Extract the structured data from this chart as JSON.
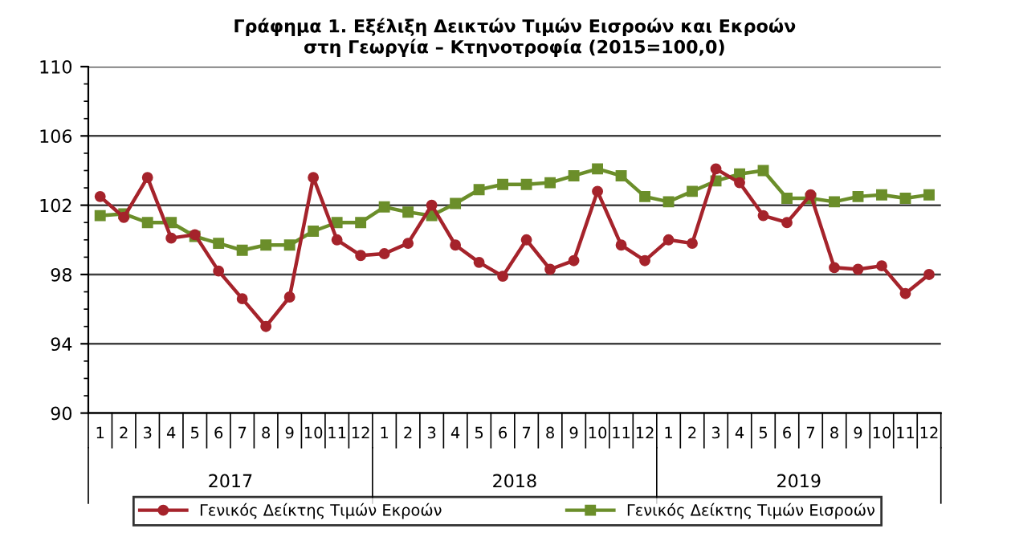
{
  "chart_data": {
    "type": "line",
    "title": "Γράφημα 1. Εξέλιξη Δεικτών Τιμών Εισροών και Εκροών\nστη Γεωργία – Κτηνοτροφία (2015=100,0)",
    "categories": [
      "1",
      "2",
      "3",
      "4",
      "5",
      "6",
      "7",
      "8",
      "9",
      "10",
      "11",
      "12",
      "1",
      "2",
      "3",
      "4",
      "5",
      "6",
      "7",
      "8",
      "9",
      "10",
      "11",
      "12",
      "1",
      "2",
      "3",
      "4",
      "5",
      "6",
      "7",
      "8",
      "9",
      "10",
      "11",
      "12"
    ],
    "annotations": [
      "2017",
      "2018",
      "2019"
    ],
    "series": [
      {
        "name": "Γενικός Δείκτης Τιμών Εκροών",
        "color": "#a5232b",
        "marker": "circle",
        "values": [
          102.5,
          101.3,
          103.6,
          100.1,
          100.3,
          98.2,
          96.6,
          95.0,
          96.7,
          103.6,
          100.0,
          99.1,
          99.2,
          99.8,
          102.0,
          99.7,
          98.7,
          97.9,
          100.0,
          98.3,
          98.8,
          102.8,
          99.7,
          98.8,
          100.0,
          99.8,
          104.1,
          103.3,
          101.4,
          101.0,
          102.6,
          98.4,
          98.3,
          98.5,
          96.9,
          98.0
        ]
      },
      {
        "name": "Γενικός Δείκτης Τιμών Εισροών",
        "color": "#6b8e2a",
        "marker": "square",
        "values": [
          101.4,
          101.5,
          101.0,
          101.0,
          100.2,
          99.8,
          99.4,
          99.7,
          99.7,
          100.5,
          101.0,
          101.0,
          101.9,
          101.6,
          101.4,
          102.1,
          102.9,
          103.2,
          103.2,
          103.3,
          103.7,
          104.1,
          103.7,
          102.5,
          102.2,
          102.8,
          103.4,
          103.8,
          104.0,
          102.4,
          102.4,
          102.2,
          102.5,
          102.6,
          102.4,
          102.6
        ]
      }
    ],
    "ylim": [
      90,
      110
    ],
    "yticks": [
      90,
      94,
      98,
      102,
      106,
      110
    ],
    "grid": "y",
    "legend": "bottom",
    "line_style": "solid"
  }
}
